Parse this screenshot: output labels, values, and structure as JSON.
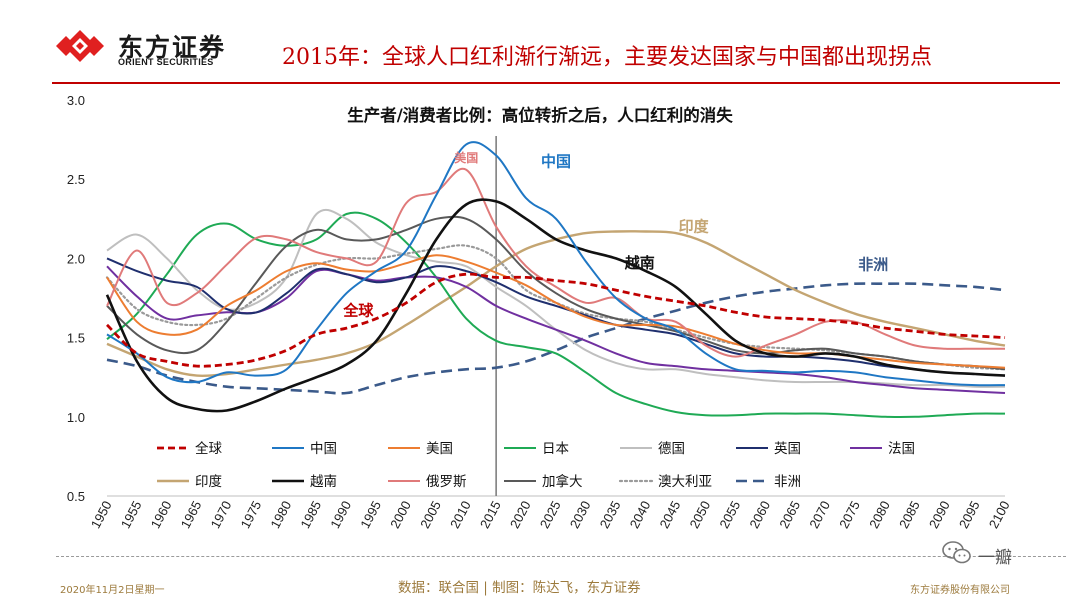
{
  "header": {
    "logo_cn": "东方证券",
    "logo_en": "ORIENT SECURITIES",
    "title": "2015年：全球人口红利渐行渐远，主要发达国家与中国都出现拐点"
  },
  "footer": {
    "date": "2020年11月2日星期一",
    "source": "数据：联合国  |  制图：陈达飞，东方证券",
    "company": "东方证券股份有限公司",
    "watermark": "一瓣"
  },
  "colors": {
    "brand_red": "#c00000",
    "footer_gold": "#9c7a3c"
  },
  "chart_data": {
    "type": "line",
    "title": "生产者/消费者比例：高位转折之后，人口红利的消失",
    "xlabel": "",
    "ylabel": "",
    "x": [
      1950,
      1955,
      1960,
      1965,
      1970,
      1975,
      1980,
      1985,
      1990,
      1995,
      2000,
      2005,
      2010,
      2015,
      2020,
      2025,
      2030,
      2035,
      2040,
      2045,
      2050,
      2055,
      2060,
      2065,
      2070,
      2075,
      2080,
      2085,
      2090,
      2095,
      2100
    ],
    "x_tick_labels": [
      "1950",
      "1955",
      "1960",
      "1965",
      "1970",
      "1975",
      "1980",
      "1985",
      "1990",
      "1995",
      "2000",
      "2005",
      "2010",
      "2015",
      "2020",
      "2025",
      "2030",
      "2035",
      "2040",
      "2045",
      "2050",
      "2055",
      "2060",
      "2065",
      "2070",
      "2075",
      "2080",
      "2085",
      "2090",
      "2095",
      "2100"
    ],
    "ylim": [
      0.5,
      3.0
    ],
    "y_ticks": [
      0.5,
      1.0,
      1.5,
      2.0,
      2.5,
      3.0
    ],
    "y_tick_labels": [
      "0.5",
      "1.0",
      "1.5",
      "2.0",
      "2.5",
      "3.0"
    ],
    "reference_line_x": 2015,
    "series": [
      {
        "name": "全球",
        "color": "#c00000",
        "dash": "dash",
        "width": 2.8,
        "values": [
          1.58,
          1.4,
          1.35,
          1.32,
          1.33,
          1.36,
          1.42,
          1.52,
          1.56,
          1.62,
          1.72,
          1.85,
          1.9,
          1.88,
          1.88,
          1.86,
          1.84,
          1.8,
          1.76,
          1.73,
          1.7,
          1.66,
          1.63,
          1.62,
          1.61,
          1.59,
          1.56,
          1.54,
          1.52,
          1.51,
          1.5
        ]
      },
      {
        "name": "中国",
        "color": "#1f77c4",
        "dash": "solid",
        "width": 2,
        "values": [
          1.52,
          1.4,
          1.25,
          1.22,
          1.28,
          1.26,
          1.3,
          1.55,
          1.78,
          1.92,
          2.05,
          2.4,
          2.72,
          2.65,
          2.38,
          2.25,
          1.98,
          1.75,
          1.62,
          1.55,
          1.4,
          1.3,
          1.29,
          1.28,
          1.29,
          1.28,
          1.25,
          1.23,
          1.21,
          1.2,
          1.2
        ]
      },
      {
        "name": "美国",
        "color": "#ed7d31",
        "dash": "solid",
        "width": 2,
        "values": [
          1.88,
          1.6,
          1.52,
          1.55,
          1.7,
          1.8,
          1.92,
          1.97,
          1.93,
          1.92,
          1.97,
          2.02,
          1.98,
          1.91,
          1.83,
          1.72,
          1.63,
          1.58,
          1.58,
          1.57,
          1.52,
          1.46,
          1.42,
          1.4,
          1.4,
          1.38,
          1.36,
          1.34,
          1.33,
          1.32,
          1.31
        ]
      },
      {
        "name": "日本",
        "color": "#1faa55",
        "dash": "solid",
        "width": 2,
        "values": [
          1.49,
          1.65,
          1.9,
          2.15,
          2.22,
          2.12,
          2.08,
          2.12,
          2.28,
          2.25,
          2.1,
          1.88,
          1.62,
          1.48,
          1.44,
          1.4,
          1.28,
          1.15,
          1.08,
          1.03,
          1.01,
          1.01,
          1.02,
          1.02,
          1.02,
          1.01,
          1.0,
          1.0,
          1.01,
          1.02,
          1.02
        ]
      },
      {
        "name": "德国",
        "color": "#bfbfbf",
        "dash": "solid",
        "width": 2,
        "values": [
          2.05,
          2.15,
          2.0,
          1.8,
          1.68,
          1.72,
          1.88,
          2.28,
          2.25,
          2.1,
          2.02,
          1.98,
          1.95,
          1.82,
          1.7,
          1.55,
          1.42,
          1.34,
          1.3,
          1.3,
          1.27,
          1.25,
          1.23,
          1.22,
          1.22,
          1.22,
          1.21,
          1.2,
          1.2,
          1.19,
          1.19
        ]
      },
      {
        "name": "英国",
        "color": "#1f2f6e",
        "dash": "solid",
        "width": 2,
        "values": [
          2.0,
          1.92,
          1.86,
          1.82,
          1.68,
          1.66,
          1.78,
          1.93,
          1.9,
          1.85,
          1.88,
          1.95,
          1.92,
          1.85,
          1.76,
          1.7,
          1.64,
          1.58,
          1.55,
          1.52,
          1.46,
          1.4,
          1.38,
          1.38,
          1.37,
          1.35,
          1.32,
          1.3,
          1.28,
          1.27,
          1.26
        ]
      },
      {
        "name": "法国",
        "color": "#7030a0",
        "dash": "solid",
        "width": 2,
        "values": [
          1.95,
          1.76,
          1.62,
          1.64,
          1.66,
          1.66,
          1.75,
          1.92,
          1.9,
          1.86,
          1.88,
          1.88,
          1.82,
          1.7,
          1.62,
          1.55,
          1.48,
          1.4,
          1.34,
          1.32,
          1.3,
          1.29,
          1.28,
          1.27,
          1.25,
          1.22,
          1.2,
          1.18,
          1.17,
          1.16,
          1.15
        ]
      },
      {
        "name": "印度",
        "color": "#c4a572",
        "dash": "solid",
        "width": 2.4,
        "values": [
          1.46,
          1.38,
          1.3,
          1.26,
          1.27,
          1.3,
          1.33,
          1.36,
          1.4,
          1.47,
          1.58,
          1.7,
          1.82,
          1.95,
          2.06,
          2.12,
          2.16,
          2.17,
          2.17,
          2.16,
          2.1,
          2.0,
          1.9,
          1.8,
          1.72,
          1.65,
          1.6,
          1.56,
          1.52,
          1.48,
          1.45
        ]
      },
      {
        "name": "越南",
        "color": "#111111",
        "dash": "solid",
        "width": 2.6,
        "values": [
          1.77,
          1.35,
          1.12,
          1.05,
          1.04,
          1.1,
          1.18,
          1.25,
          1.33,
          1.48,
          1.78,
          2.12,
          2.34,
          2.36,
          2.25,
          2.12,
          2.05,
          2.0,
          1.92,
          1.82,
          1.65,
          1.48,
          1.4,
          1.38,
          1.4,
          1.38,
          1.33,
          1.3,
          1.28,
          1.27,
          1.26
        ]
      },
      {
        "name": "俄罗斯",
        "color": "#e07a7a",
        "dash": "solid",
        "width": 2,
        "values": [
          1.7,
          2.05,
          1.72,
          1.78,
          1.96,
          2.13,
          2.12,
          2.04,
          2.0,
          1.98,
          2.35,
          2.42,
          2.56,
          2.2,
          1.95,
          1.82,
          1.72,
          1.75,
          1.62,
          1.6,
          1.45,
          1.38,
          1.45,
          1.52,
          1.6,
          1.6,
          1.52,
          1.45,
          1.43,
          1.43,
          1.43
        ]
      },
      {
        "name": "加拿大",
        "color": "#595959",
        "dash": "solid",
        "width": 2,
        "values": [
          1.7,
          1.52,
          1.42,
          1.42,
          1.6,
          1.85,
          2.08,
          2.18,
          2.12,
          2.12,
          2.18,
          2.25,
          2.25,
          2.12,
          1.92,
          1.78,
          1.68,
          1.62,
          1.58,
          1.54,
          1.48,
          1.42,
          1.4,
          1.42,
          1.43,
          1.4,
          1.38,
          1.35,
          1.33,
          1.32,
          1.3
        ]
      },
      {
        "name": "澳大利亚",
        "color": "#9a9a9a",
        "dash": "dot",
        "width": 2.2,
        "values": [
          1.88,
          1.68,
          1.6,
          1.58,
          1.62,
          1.75,
          1.88,
          1.96,
          2.0,
          2.0,
          2.03,
          2.06,
          2.08,
          2.0,
          1.8,
          1.72,
          1.65,
          1.62,
          1.6,
          1.55,
          1.5,
          1.46,
          1.44,
          1.43,
          1.42,
          1.4,
          1.38,
          1.35,
          1.33,
          1.31,
          1.3
        ]
      },
      {
        "name": "非洲",
        "color": "#3b5a8a",
        "dash": "longdash",
        "width": 2.6,
        "values": [
          1.36,
          1.32,
          1.26,
          1.22,
          1.19,
          1.18,
          1.17,
          1.16,
          1.15,
          1.2,
          1.25,
          1.28,
          1.3,
          1.31,
          1.35,
          1.42,
          1.5,
          1.56,
          1.62,
          1.67,
          1.72,
          1.76,
          1.79,
          1.81,
          1.83,
          1.84,
          1.84,
          1.84,
          1.83,
          1.82,
          1.8
        ]
      }
    ],
    "annotations": [
      {
        "text": "全球",
        "x": 1992,
        "y": 1.64,
        "color": "#c00000"
      },
      {
        "text": "美国",
        "x": 2010,
        "y": 2.61,
        "color": "#e07a7a"
      },
      {
        "text": "中国",
        "x": 2025,
        "y": 2.58,
        "color": "#1f77c4"
      },
      {
        "text": "印度",
        "x": 2048,
        "y": 2.17,
        "color": "#c4a572"
      },
      {
        "text": "越南",
        "x": 2039,
        "y": 1.94,
        "color": "#111111"
      },
      {
        "text": "非洲",
        "x": 2078,
        "y": 1.93,
        "color": "#3b5a8a"
      }
    ],
    "legend": {
      "placement": "bottom-inside",
      "rows": [
        [
          "全球",
          "中国",
          "美国",
          "日本",
          "德国",
          "英国",
          "法国"
        ],
        [
          "印度",
          "越南",
          "俄罗斯",
          "加拿大",
          "澳大利亚",
          "非洲"
        ]
      ]
    }
  }
}
